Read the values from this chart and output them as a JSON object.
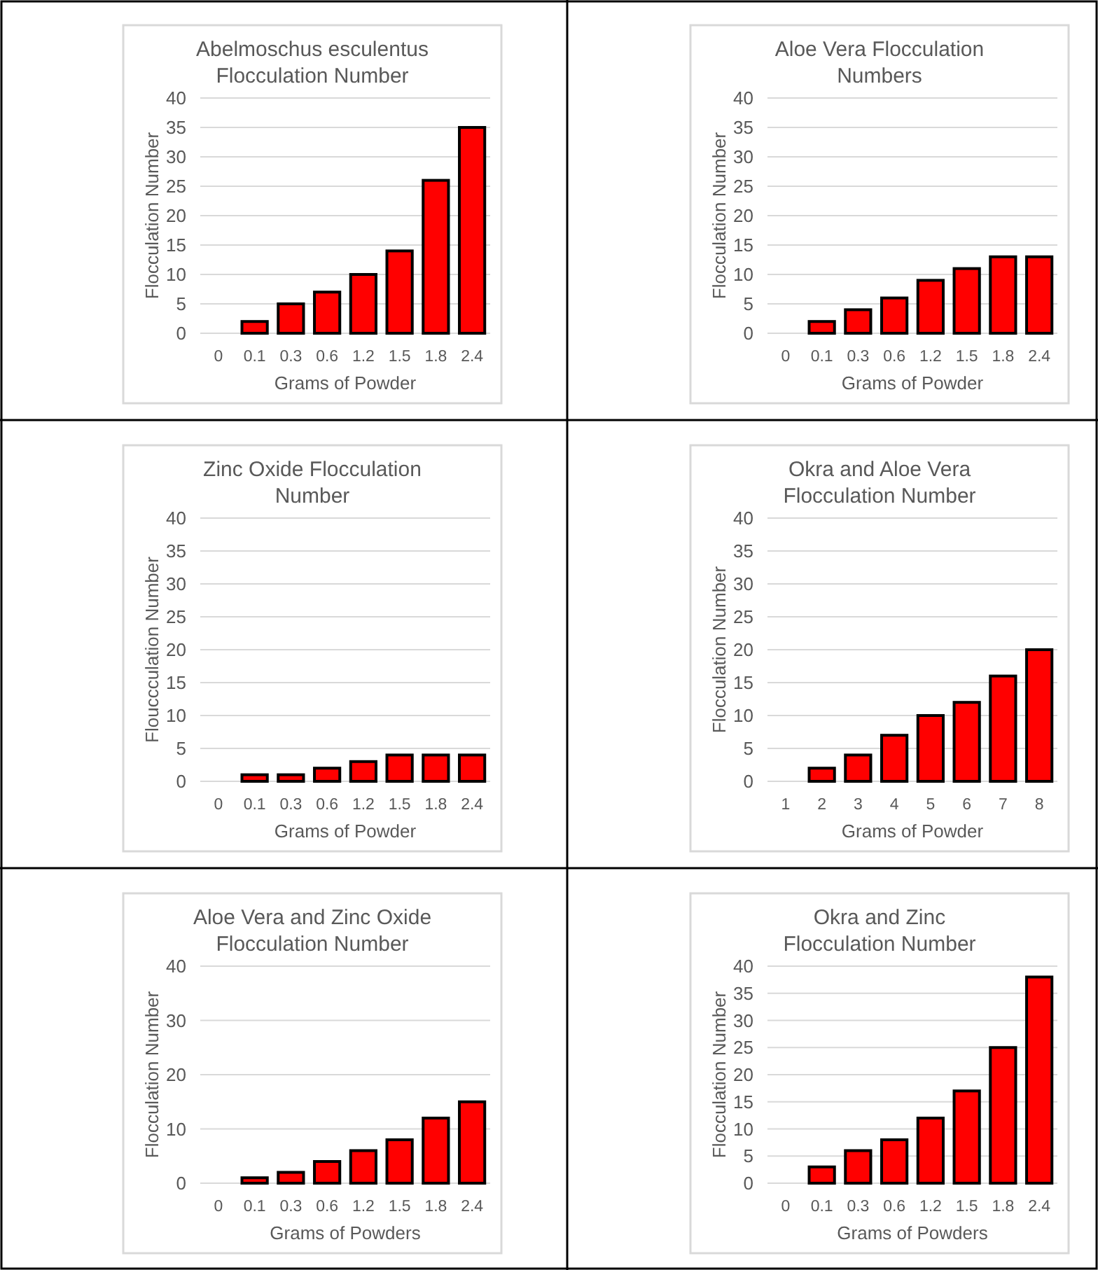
{
  "chart_data": [
    {
      "type": "bar",
      "title": "Abelmoschus esculentus Flocculation Number",
      "xlabel": "Grams of Powder",
      "ylabel": "Flocculation Number",
      "categories": [
        "0",
        "0.1",
        "0.3",
        "0.6",
        "1.2",
        "1.5",
        "1.8",
        "2.4"
      ],
      "values": [
        0,
        2,
        5,
        7,
        10,
        14,
        26,
        35
      ],
      "color": "#ff0000",
      "ylim": [
        0,
        40
      ],
      "yticks": [
        0,
        5,
        10,
        15,
        20,
        25,
        30,
        35,
        40
      ],
      "grid": "y"
    },
    {
      "type": "bar",
      "title": "Aloe Vera Flocculation Numbers",
      "xlabel": "Grams of Powder",
      "ylabel": "Flocculation Number",
      "categories": [
        "0",
        "0.1",
        "0.3",
        "0.6",
        "1.2",
        "1.5",
        "1.8",
        "2.4"
      ],
      "values": [
        0,
        2,
        4,
        6,
        9,
        11,
        13,
        13
      ],
      "color": "#ff0000",
      "ylim": [
        0,
        40
      ],
      "yticks": [
        0,
        5,
        10,
        15,
        20,
        25,
        30,
        35,
        40
      ],
      "grid": "y"
    },
    {
      "type": "bar",
      "title": "Zinc Oxide Flocculation Number",
      "xlabel": "Grams of Powder",
      "ylabel": "Flouccculation Number",
      "categories": [
        "0",
        "0.1",
        "0.3",
        "0.6",
        "1.2",
        "1.5",
        "1.8",
        "2.4"
      ],
      "values": [
        0,
        1,
        1,
        2,
        3,
        4,
        4,
        4
      ],
      "color": "#ff0000",
      "ylim": [
        0,
        40
      ],
      "yticks": [
        0,
        5,
        10,
        15,
        20,
        25,
        30,
        35,
        40
      ],
      "grid": "y"
    },
    {
      "type": "bar",
      "title": "Okra and Aloe Vera Flocculation Number",
      "xlabel": "Grams of Powder",
      "ylabel": "Flocculation Number",
      "categories": [
        "1",
        "2",
        "3",
        "4",
        "5",
        "6",
        "7",
        "8"
      ],
      "values": [
        0,
        2,
        4,
        7,
        10,
        12,
        16,
        20
      ],
      "color": "#ff0000",
      "ylim": [
        0,
        40
      ],
      "yticks": [
        0,
        5,
        10,
        15,
        20,
        25,
        30,
        35,
        40
      ],
      "grid": "y"
    },
    {
      "type": "bar",
      "title": "Aloe Vera and Zinc Oxide Flocculation Number",
      "xlabel": "Grams of Powders",
      "ylabel": "Flocculation Number",
      "categories": [
        "0",
        "0.1",
        "0.3",
        "0.6",
        "1.2",
        "1.5",
        "1.8",
        "2.4"
      ],
      "values": [
        0,
        1,
        2,
        4,
        6,
        8,
        12,
        15
      ],
      "color": "#ff0000",
      "ylim": [
        0,
        40
      ],
      "yticks": [
        0,
        10,
        20,
        30,
        40
      ],
      "grid": "y"
    },
    {
      "type": "bar",
      "title": "Okra and Zinc Flocculation Number",
      "xlabel": "Grams of Powders",
      "ylabel": "Flocculation Number",
      "categories": [
        "0",
        "0.1",
        "0.3",
        "0.6",
        "1.2",
        "1.5",
        "1.8",
        "2.4"
      ],
      "values": [
        0,
        3,
        6,
        8,
        12,
        17,
        25,
        38
      ],
      "color": "#ff0000",
      "ylim": [
        0,
        40
      ],
      "yticks": [
        0,
        5,
        10,
        15,
        20,
        25,
        30,
        35,
        40
      ],
      "grid": "y"
    }
  ]
}
